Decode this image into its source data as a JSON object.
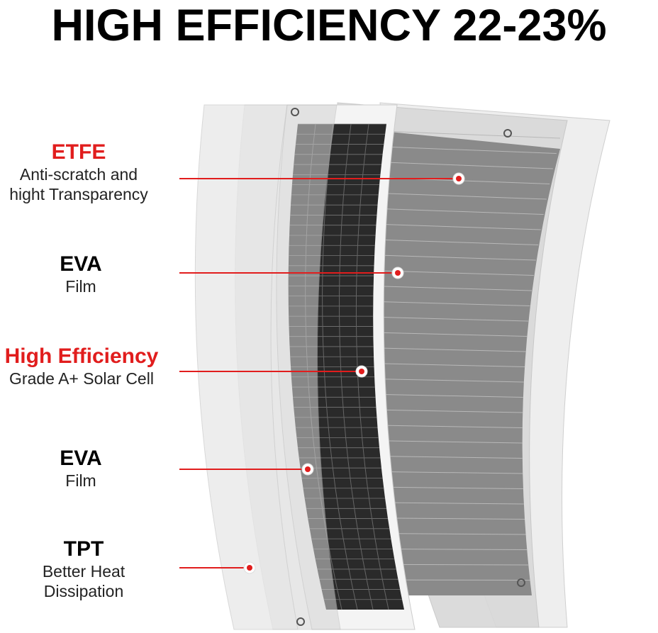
{
  "title": "HIGH EFFICIENCY 22-23%",
  "colors": {
    "accent": "#e11d1d",
    "text": "#000000"
  },
  "layers": [
    {
      "heading": "ETFE",
      "heading_color": "#e11d1d",
      "lines": [
        "Anti-scratch and",
        "hight Transparency"
      ]
    },
    {
      "heading": "EVA",
      "heading_color": "#000000",
      "lines": [
        "Film"
      ]
    },
    {
      "heading": "High Efficiency",
      "heading_color": "#e11d1d",
      "lines": [
        "Grade A+ Solar Cell"
      ]
    },
    {
      "heading": "EVA",
      "heading_color": "#000000",
      "lines": [
        "Film"
      ]
    },
    {
      "heading": "TPT",
      "heading_color": "#000000",
      "lines": [
        "Better Heat",
        "Dissipation"
      ]
    }
  ]
}
